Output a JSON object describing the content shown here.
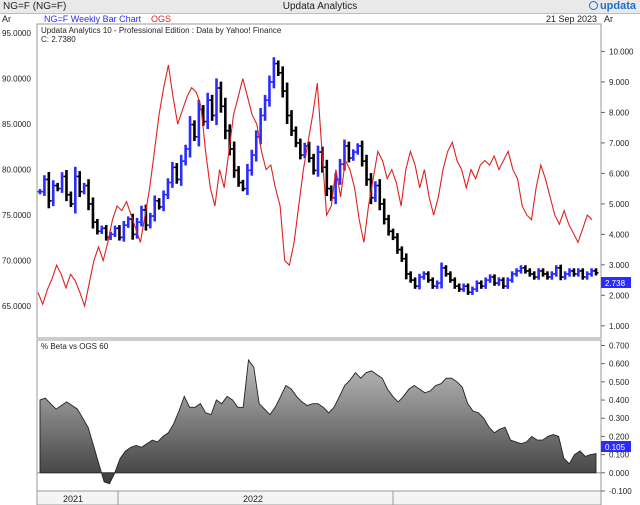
{
  "window": {
    "left_title": "NG=F (NG=F)",
    "center_title": "Updata Analytics",
    "logo_text": "updata",
    "logo_icon": "updata-logo-icon"
  },
  "header": {
    "axis_left_label": "Ar",
    "axis_right_label": "Ar",
    "series1_label": "NG=F Weekly Bar Chart",
    "series2_label": "OGS",
    "date": "21 Sep 2023",
    "edition": "Updata Analytics 10 - Professional Edition : Data by Yahoo! Finance",
    "close_readout": "C: 2.7380"
  },
  "colors": {
    "up_bar": "#2b2bff",
    "down_bar": "#000000",
    "ogs_line": "#e02020",
    "area_fill_top": "#b4b4b4",
    "area_fill_bottom": "#444444"
  },
  "chart_data": [
    {
      "type": "bar",
      "subtype": "ohlc-weekly",
      "title": "NG=F Weekly Bar Chart",
      "left_axis": {
        "label": "Ar",
        "range": [
          61.5,
          96.0
        ],
        "ticks": [
          "95.0000",
          "90.0000",
          "85.0000",
          "80.0000",
          "75.0000",
          "70.0000",
          "65.0000"
        ]
      },
      "right_axis": {
        "label": "Ar",
        "range": [
          0.6,
          10.9
        ],
        "ticks": [
          "10.000",
          "9.000",
          "8.000",
          "7.000",
          "6.000",
          "5.000",
          "4.000",
          "3.000",
          "2.000",
          "1.000"
        ],
        "last_value_badge": "2.738"
      },
      "x_labels": [
        "2021",
        "2022"
      ],
      "series": [
        {
          "name": "NG=F",
          "axis": "right",
          "closes": [
            5.4,
            5.8,
            5.1,
            5.6,
            5.5,
            5.9,
            5.3,
            5.0,
            5.9,
            5.4,
            5.6,
            5.0,
            4.4,
            4.1,
            4.2,
            3.9,
            4.0,
            4.2,
            3.9,
            4.3,
            4.5,
            4.0,
            4.4,
            4.8,
            4.3,
            4.6,
            5.1,
            4.9,
            5.3,
            5.7,
            6.2,
            5.8,
            6.4,
            6.8,
            7.6,
            7.2,
            8.1,
            7.7,
            8.4,
            7.9,
            8.8,
            8.2,
            7.4,
            6.8,
            6.1,
            5.7,
            5.5,
            6.1,
            6.6,
            7.2,
            7.9,
            8.4,
            9.0,
            9.6,
            9.3,
            8.7,
            7.9,
            7.4,
            7.0,
            6.6,
            6.9,
            6.5,
            6.1,
            6.7,
            6.2,
            5.5,
            5.2,
            5.8,
            6.3,
            6.9,
            6.5,
            6.7,
            6.9,
            6.4,
            5.8,
            5.2,
            5.6,
            5.0,
            4.5,
            4.1,
            3.9,
            3.5,
            3.2,
            2.7,
            2.5,
            2.3,
            2.6,
            2.7,
            2.5,
            2.3,
            2.4,
            2.9,
            2.7,
            2.5,
            2.3,
            2.2,
            2.3,
            2.1,
            2.2,
            2.4,
            2.3,
            2.5,
            2.6,
            2.4,
            2.5,
            2.3,
            2.5,
            2.7,
            2.8,
            2.9,
            2.8,
            2.7,
            2.6,
            2.8,
            2.7,
            2.6,
            2.7,
            2.9,
            2.6,
            2.7,
            2.8,
            2.7,
            2.8,
            2.6,
            2.7,
            2.8,
            2.738
          ]
        },
        {
          "name": "OGS",
          "axis": "left",
          "values": [
            66.5,
            65.2,
            66.8,
            68.0,
            69.5,
            68.5,
            67.0,
            68.5,
            67.8,
            66.5,
            65.0,
            67.5,
            70.0,
            71.5,
            70.0,
            72.0,
            74.5,
            76.0,
            75.5,
            76.5,
            75.0,
            73.5,
            72.0,
            75.0,
            78.0,
            82.0,
            86.0,
            89.0,
            91.5,
            88.0,
            85.0,
            86.5,
            88.0,
            89.0,
            88.5,
            87.0,
            82.0,
            78.0,
            76.0,
            80.0,
            78.0,
            82.0,
            86.0,
            88.0,
            90.0,
            88.0,
            86.0,
            85.0,
            82.0,
            80.0,
            80.5,
            78.0,
            76.0,
            70.0,
            69.5,
            72.0,
            76.0,
            80.0,
            83.0,
            86.0,
            89.5,
            82.0,
            75.0,
            76.0,
            80.0,
            77.0,
            81.0,
            80.0,
            78.0,
            74.5,
            72.0,
            76.0,
            79.0,
            82.0,
            81.0,
            79.0,
            80.0,
            78.5,
            76.0,
            80.0,
            82.0,
            80.5,
            78.0,
            80.0,
            77.0,
            75.0,
            77.0,
            80.0,
            82.0,
            83.0,
            81.0,
            80.0,
            78.0,
            80.0,
            79.0,
            80.5,
            81.0,
            80.5,
            81.5,
            80.0,
            81.0,
            82.0,
            80.0,
            79.0,
            76.0,
            75.0,
            74.5,
            78.0,
            80.5,
            79.0,
            77.0,
            75.0,
            74.0,
            75.5,
            74.0,
            73.0,
            72.0,
            73.5,
            75.0,
            74.5
          ]
        }
      ]
    },
    {
      "type": "area",
      "title": "% Beta vs OGS 60",
      "axis_range": [
        -0.1,
        0.73
      ],
      "ticks": [
        "0.700",
        "0.600",
        "0.500",
        "0.400",
        "0.300",
        "0.200",
        "0.100",
        "0.000",
        "-0.100"
      ],
      "last_value_badge": "0.105",
      "values": [
        0.4,
        0.41,
        0.38,
        0.35,
        0.37,
        0.39,
        0.37,
        0.35,
        0.3,
        0.25,
        0.15,
        0.05,
        -0.05,
        -0.06,
        0.0,
        0.08,
        0.12,
        0.14,
        0.15,
        0.14,
        0.16,
        0.18,
        0.17,
        0.2,
        0.22,
        0.27,
        0.34,
        0.42,
        0.36,
        0.36,
        0.38,
        0.33,
        0.32,
        0.4,
        0.38,
        0.42,
        0.4,
        0.36,
        0.36,
        0.62,
        0.58,
        0.38,
        0.35,
        0.32,
        0.36,
        0.42,
        0.48,
        0.46,
        0.42,
        0.39,
        0.37,
        0.38,
        0.38,
        0.36,
        0.33,
        0.36,
        0.42,
        0.48,
        0.51,
        0.55,
        0.52,
        0.55,
        0.56,
        0.54,
        0.52,
        0.46,
        0.42,
        0.39,
        0.42,
        0.46,
        0.48,
        0.46,
        0.44,
        0.45,
        0.48,
        0.49,
        0.52,
        0.52,
        0.5,
        0.47,
        0.38,
        0.34,
        0.33,
        0.3,
        0.25,
        0.22,
        0.24,
        0.25,
        0.18,
        0.17,
        0.16,
        0.17,
        0.2,
        0.18,
        0.18,
        0.2,
        0.21,
        0.2,
        0.08,
        0.05,
        0.1,
        0.12,
        0.09,
        0.1,
        0.105
      ]
    }
  ]
}
